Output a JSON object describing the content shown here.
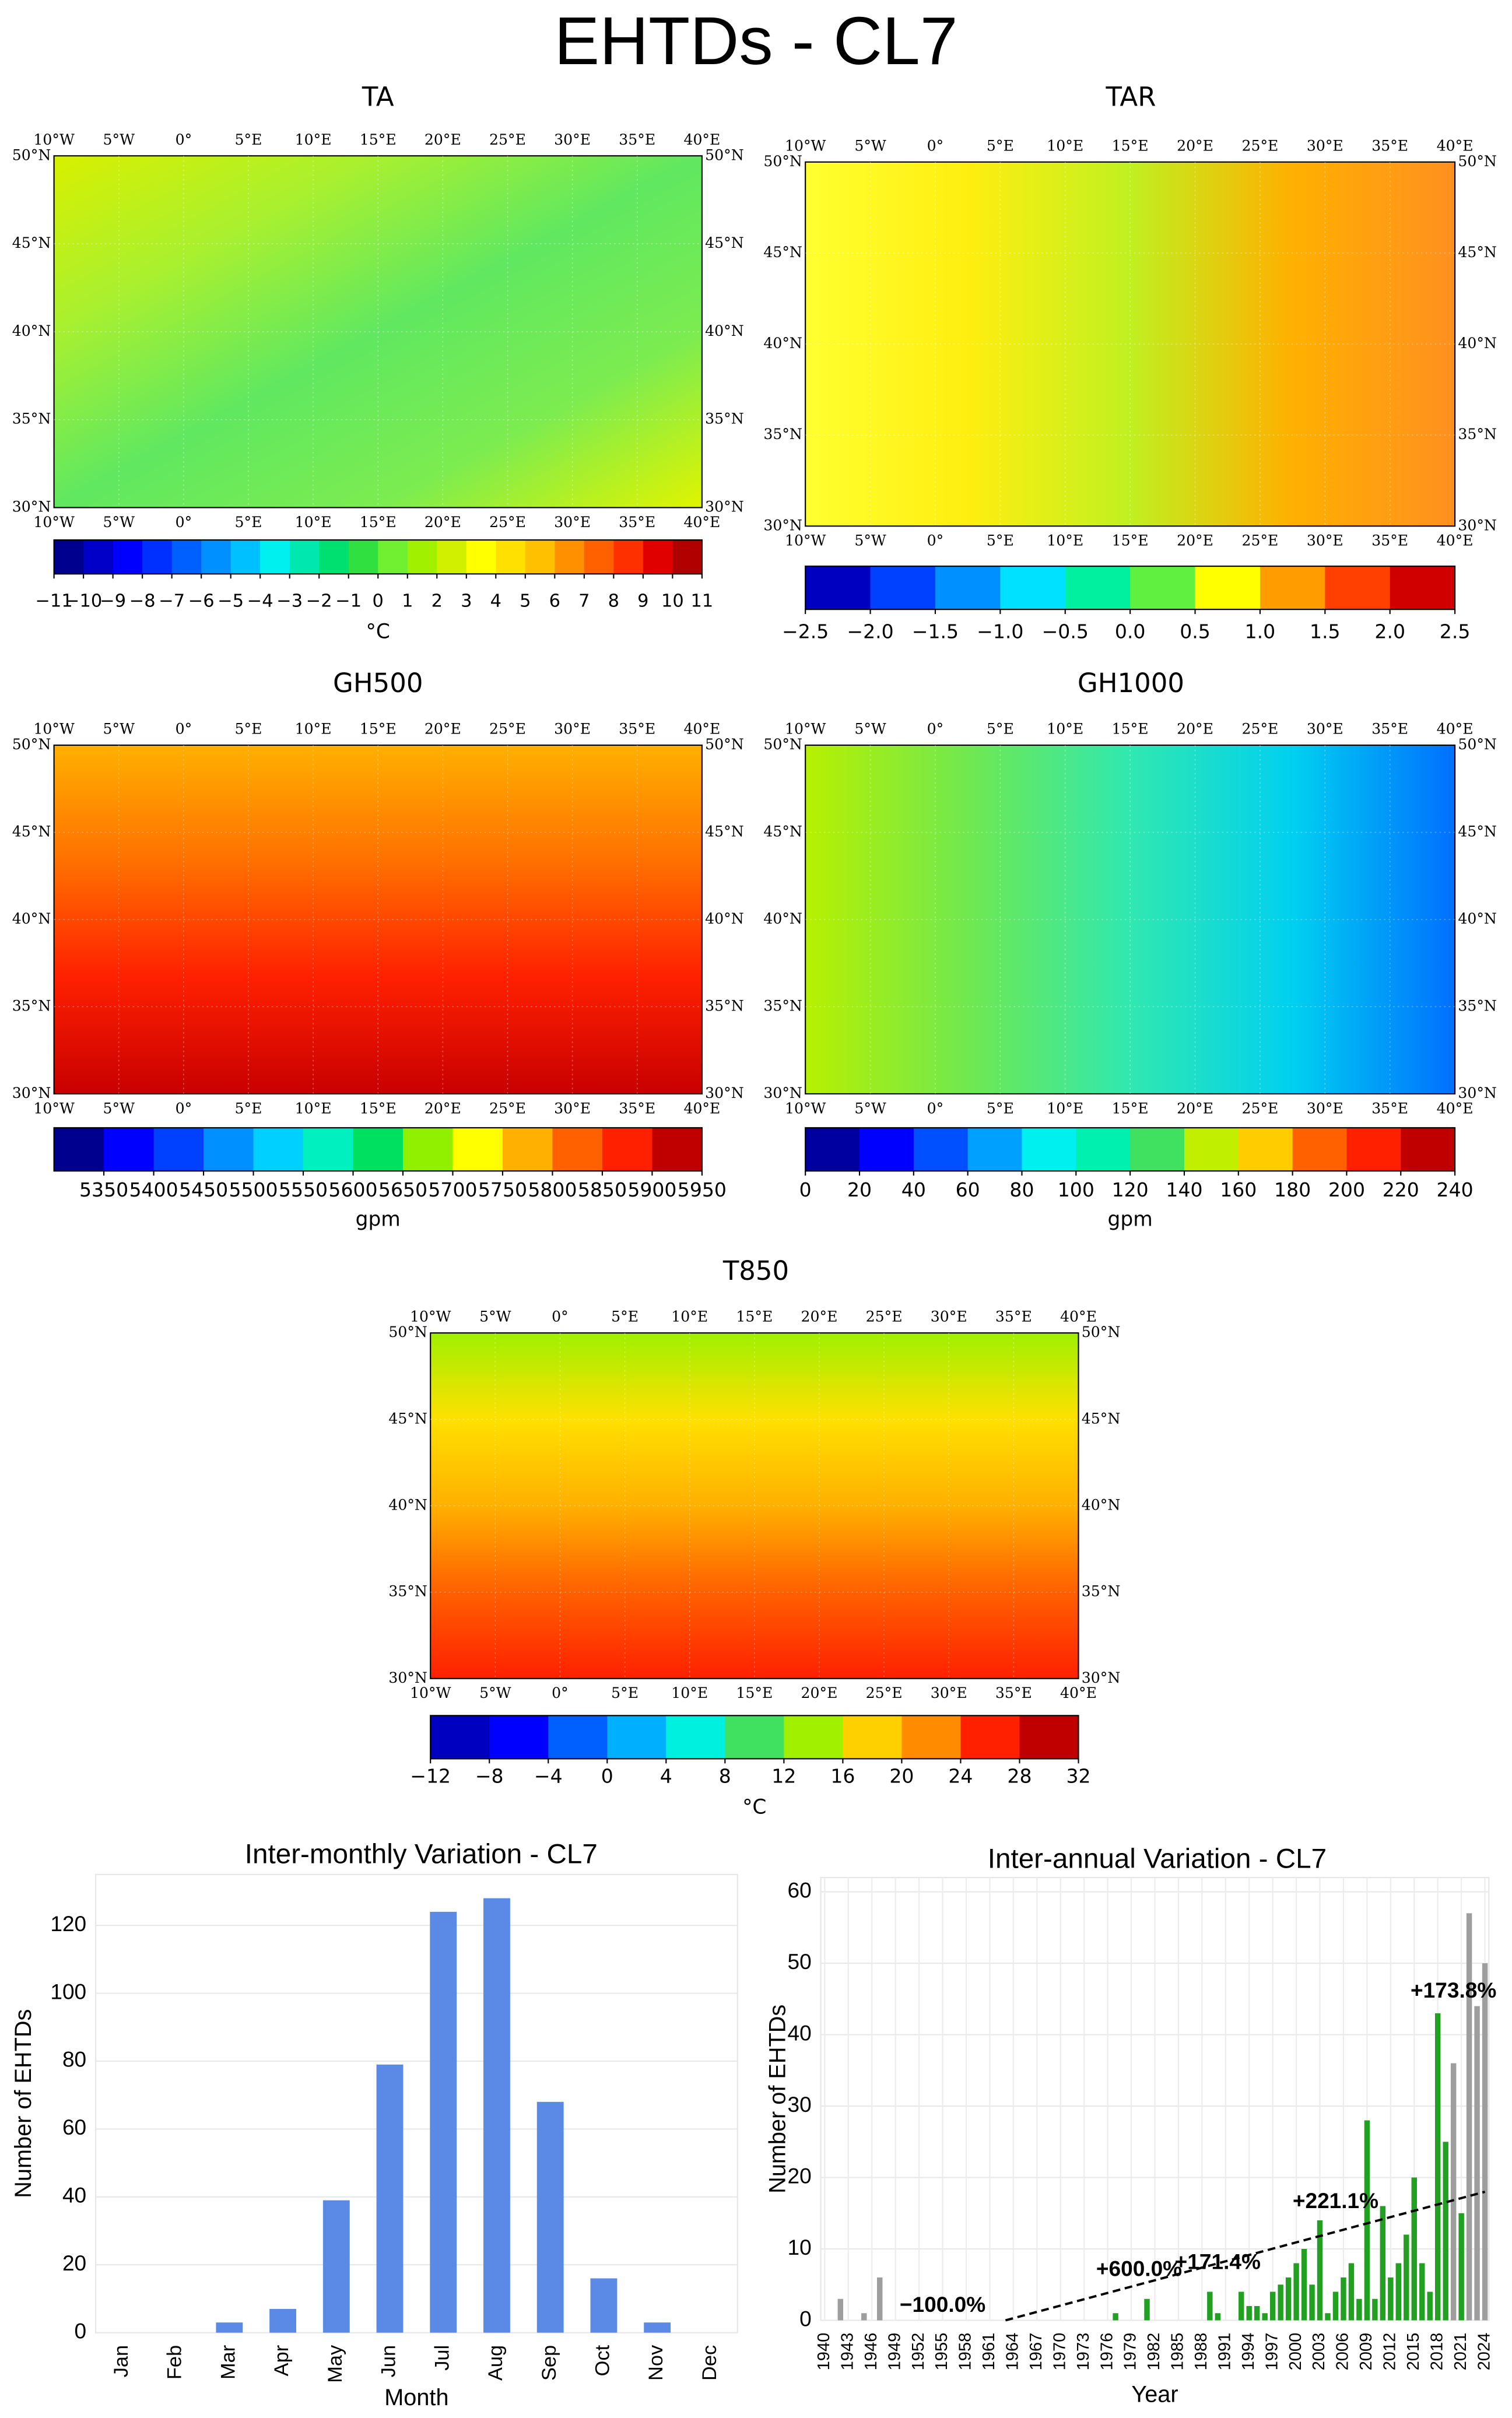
{
  "title": "EHTDs - CL7",
  "lon_labels": [
    "10°W",
    "5°W",
    "0°",
    "5°E",
    "10°E",
    "15°E",
    "20°E",
    "25°E",
    "30°E",
    "35°E",
    "40°E"
  ],
  "lat_labels": [
    "30°N",
    "35°N",
    "40°N",
    "45°N",
    "50°N"
  ],
  "maps": [
    {
      "title": "TA",
      "colorbar": {
        "lim": [
          -11,
          11
        ],
        "unit": "°C",
        "ticks": [
          {
            "value": -11,
            "label": "−11"
          },
          {
            "value": -10,
            "label": "−10"
          },
          {
            "value": -9,
            "label": "−9"
          },
          {
            "value": -8,
            "label": "−8"
          },
          {
            "value": -7,
            "label": "−7"
          },
          {
            "value": -6,
            "label": "−6"
          },
          {
            "value": -5,
            "label": "−5"
          },
          {
            "value": -4,
            "label": "−4"
          },
          {
            "value": -3,
            "label": "−3"
          },
          {
            "value": -2,
            "label": "−2"
          },
          {
            "value": -1,
            "label": "−1"
          },
          0,
          1,
          2,
          3,
          4,
          5,
          6,
          7,
          8,
          9,
          10,
          11
        ],
        "colors": [
          "#00008f",
          "#0000c8",
          "#0000ff",
          "#0030ff",
          "#0060ff",
          "#0090ff",
          "#00c0ff",
          "#00f0f0",
          "#00e8b0",
          "#00e070",
          "#30e040",
          "#70f030",
          "#a0f000",
          "#d0f000",
          "#ffff00",
          "#ffe000",
          "#ffc000",
          "#ff9000",
          "#ff6000",
          "#ff3000",
          "#e00000",
          "#b00000"
        ]
      }
    },
    {
      "title": "TAR",
      "colorbar": {
        "lim": [
          -2.5,
          2.5
        ],
        "ticks": [
          {
            "value": -2.5,
            "label": "−2.5"
          },
          {
            "value": -2.0,
            "label": "−2.0"
          },
          {
            "value": -1.5,
            "label": "−1.5"
          },
          {
            "value": -1.0,
            "label": "−1.0"
          },
          {
            "value": -0.5,
            "label": "−0.5"
          },
          {
            "value": 0,
            "label": "0.0"
          },
          0.5,
          {
            "value": 1,
            "label": "1.0"
          },
          1.5,
          {
            "value": 2,
            "label": "2.0"
          },
          2.5
        ],
        "colors": [
          "#0000c0",
          "#0040ff",
          "#0090ff",
          "#00e0ff",
          "#00f0a0",
          "#60f040",
          "#ffff00",
          "#ff9c00",
          "#ff4000",
          "#d00000"
        ]
      }
    },
    {
      "title": "GH500",
      "colorbar": {
        "lim": [
          5300,
          5950
        ],
        "unit": "gpm",
        "ticks": [
          5350,
          5400,
          5450,
          5500,
          5550,
          5600,
          5650,
          5700,
          5750,
          5800,
          5850,
          5900,
          5950
        ],
        "colors": [
          "#00008f",
          "#0000ff",
          "#0040ff",
          "#0090ff",
          "#00d0ff",
          "#00f0c0",
          "#00e060",
          "#90f000",
          "#ffff00",
          "#ffb000",
          "#ff6000",
          "#ff2000",
          "#c00000"
        ]
      }
    },
    {
      "title": "GH1000",
      "colorbar": {
        "lim": [
          0,
          240
        ],
        "unit": "gpm",
        "ticks": [
          0,
          20,
          40,
          60,
          80,
          100,
          120,
          140,
          160,
          180,
          200,
          220,
          240
        ],
        "colors": [
          "#0000a0",
          "#0000ff",
          "#0050ff",
          "#00a0ff",
          "#00f0f0",
          "#00f0b0",
          "#40e060",
          "#c0f000",
          "#ffcc00",
          "#ff6000",
          "#ff2000",
          "#c00000"
        ]
      }
    },
    {
      "title": "T850",
      "colorbar": {
        "lim": [
          -12,
          32
        ],
        "unit": "°C",
        "ticks": [
          {
            "value": -12,
            "label": "−12"
          },
          {
            "value": -8,
            "label": "−8"
          },
          {
            "value": -4,
            "label": "−4"
          },
          0,
          4,
          8,
          12,
          16,
          20,
          24,
          28,
          32
        ],
        "colors": [
          "#0000c0",
          "#0000ff",
          "#0060ff",
          "#00b0ff",
          "#00f0e0",
          "#40e060",
          "#a0f000",
          "#ffd000",
          "#ff8c00",
          "#ff2000",
          "#c00000"
        ]
      }
    }
  ],
  "chart_data": [
    {
      "type": "bar",
      "title": "Inter-monthly Variation - CL7",
      "x_label": "Month",
      "y_label": "Number of EHTDs",
      "categories": [
        "Jan",
        "Feb",
        "Mar",
        "Apr",
        "May",
        "Jun",
        "Jul",
        "Aug",
        "Sep",
        "Oct",
        "Nov",
        "Dec"
      ],
      "values": [
        0,
        0,
        3,
        7,
        39,
        79,
        124,
        128,
        68,
        16,
        3,
        0
      ],
      "color": "#5b8ae6",
      "ylim": [
        0,
        135
      ],
      "yticks": [
        0,
        20,
        40,
        60,
        80,
        100,
        120
      ],
      "grid": true
    },
    {
      "type": "bar",
      "title": "Inter-annual Variation - CL7",
      "x_label": "Year",
      "y_label": "Number of EHTDs",
      "categories": [
        1940,
        null,
        null,
        1943,
        null,
        null,
        1946,
        null,
        null,
        1949,
        null,
        null,
        1952,
        null,
        null,
        1955,
        null,
        null,
        1958,
        null,
        null,
        1961,
        null,
        null,
        1964,
        null,
        null,
        1967,
        null,
        null,
        1970,
        null,
        null,
        1973,
        null,
        null,
        1976,
        null,
        null,
        1979,
        null,
        null,
        1982,
        null,
        null,
        1985,
        null,
        null,
        1988,
        null,
        null,
        1991,
        null,
        null,
        1994,
        null,
        null,
        1997,
        null,
        null,
        2000,
        null,
        null,
        2003,
        null,
        null,
        2006,
        null,
        null,
        2009,
        null,
        null,
        2012,
        null,
        null,
        2015,
        null,
        null,
        2018,
        null,
        null,
        2021,
        null,
        null,
        2024
      ],
      "values": [
        0,
        0,
        3,
        0,
        0,
        1,
        0,
        6,
        0,
        0,
        0,
        0,
        0,
        0,
        0,
        0,
        0,
        0,
        0,
        0,
        0,
        0,
        0,
        0,
        0,
        0,
        0,
        0,
        0,
        0,
        0,
        0,
        0,
        0,
        0,
        0,
        0,
        1,
        0,
        0,
        0,
        3,
        0,
        0,
        0,
        0,
        0,
        0,
        0,
        4,
        1,
        0,
        0,
        4,
        2,
        2,
        1,
        4,
        5,
        6,
        8,
        10,
        5,
        14,
        1,
        4,
        6,
        8,
        3,
        28,
        3,
        16,
        6,
        8,
        12,
        20,
        8,
        4,
        43,
        25,
        36,
        15,
        57,
        44,
        50
      ],
      "colors": [
        "#22a022",
        "#22a022",
        "#9e9e9e",
        "#22a022",
        "#22a022",
        "#9e9e9e",
        "#22a022",
        "#9e9e9e",
        "#22a022",
        "#22a022",
        "#22a022",
        "#22a022",
        "#22a022",
        "#22a022",
        "#22a022",
        "#22a022",
        "#22a022",
        "#22a022",
        "#22a022",
        "#22a022",
        "#22a022",
        "#22a022",
        "#22a022",
        "#22a022",
        "#22a022",
        "#22a022",
        "#22a022",
        "#22a022",
        "#22a022",
        "#22a022",
        "#22a022",
        "#22a022",
        "#22a022",
        "#22a022",
        "#22a022",
        "#22a022",
        "#22a022",
        "#22a022",
        "#22a022",
        "#22a022",
        "#22a022",
        "#22a022",
        "#22a022",
        "#22a022",
        "#22a022",
        "#22a022",
        "#22a022",
        "#22a022",
        "#22a022",
        "#22a022",
        "#22a022",
        "#22a022",
        "#22a022",
        "#22a022",
        "#22a022",
        "#22a022",
        "#22a022",
        "#22a022",
        "#22a022",
        "#22a022",
        "#22a022",
        "#22a022",
        "#22a022",
        "#22a022",
        "#22a022",
        "#22a022",
        "#22a022",
        "#22a022",
        "#22a022",
        "#22a022",
        "#22a022",
        "#22a022",
        "#22a022",
        "#22a022",
        "#22a022",
        "#22a022",
        "#22a022",
        "#22a022",
        "#22a022",
        "#22a022",
        "#9e9e9e",
        "#22a022",
        "#9e9e9e",
        "#9e9e9e",
        "#9e9e9e"
      ],
      "trend": {
        "x": [
          1963,
          2024
        ],
        "y": [
          0,
          18
        ]
      },
      "annotations": [
        {
          "text": "−100.0%",
          "x": 1955,
          "y": 2,
          "color": "#e02020"
        },
        {
          "text": "+600.0%",
          "x": 1980,
          "y": 7,
          "color": "#1a8c1a"
        },
        {
          "text": "+171.4%",
          "x": 1990,
          "y": 8,
          "color": "#1a8c1a"
        },
        {
          "text": "+221.1%",
          "x": 2005,
          "y": 16.5,
          "color": "#1a8c1a"
        },
        {
          "text": "+173.8%",
          "x": 2020,
          "y": 46,
          "color": "#1a8c1a"
        }
      ],
      "ylim": [
        0,
        62
      ],
      "yticks": [
        0,
        10,
        20,
        30,
        40,
        50,
        60
      ],
      "grid": true
    }
  ]
}
